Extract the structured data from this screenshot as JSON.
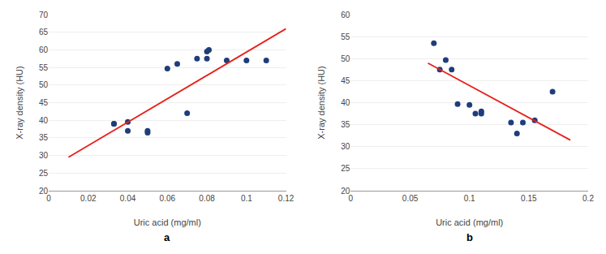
{
  "chart_data": [
    {
      "type": "scatter",
      "xlabel": "Uric acid (mg/ml)",
      "ylabel": "X-ray density (HU)",
      "annotations": [
        {
          "text": "a"
        }
      ],
      "series": [
        {
          "type": "scatter",
          "marker": "circle",
          "color": "#1f3d7a",
          "x": [
            0.033,
            0.033,
            0.04,
            0.04,
            0.05,
            0.05,
            0.06,
            0.065,
            0.07,
            0.075,
            0.08,
            0.08,
            0.081,
            0.09,
            0.1,
            0.11
          ],
          "values": [
            39,
            39,
            39.5,
            37,
            36.5,
            37,
            54.7,
            56,
            42,
            57.5,
            57.5,
            59.5,
            60,
            57,
            57,
            57
          ]
        },
        {
          "type": "line",
          "line_style": "solid",
          "color": "#e8201a",
          "x": [
            0.01,
            0.12
          ],
          "values": [
            29.5,
            66
          ]
        }
      ],
      "xlim": [
        0,
        0.12
      ],
      "ylim": [
        20,
        70
      ],
      "xticks": [
        0,
        0.02,
        0.04,
        0.06,
        0.08,
        0.1,
        0.12
      ],
      "yticks": [
        20,
        25,
        30,
        35,
        40,
        45,
        50,
        55,
        60,
        65,
        70
      ],
      "grid": "y"
    },
    {
      "type": "scatter",
      "xlabel": "Uric acid (mg/ml)",
      "ylabel": "X-ray density (HU)",
      "annotations": [
        {
          "text": "b"
        }
      ],
      "series": [
        {
          "type": "scatter",
          "marker": "circle",
          "color": "#1f3d7a",
          "x": [
            0.07,
            0.075,
            0.08,
            0.085,
            0.09,
            0.1,
            0.105,
            0.11,
            0.11,
            0.135,
            0.14,
            0.145,
            0.155,
            0.17
          ],
          "values": [
            53.5,
            47.5,
            49.7,
            47.5,
            39.7,
            39.5,
            37.5,
            37.5,
            38,
            35.5,
            33,
            35.5,
            36,
            42.5
          ]
        },
        {
          "type": "line",
          "line_style": "solid",
          "color": "#e8201a",
          "x": [
            0.065,
            0.185
          ],
          "values": [
            49,
            31.5
          ]
        }
      ],
      "xlim": [
        0,
        0.2
      ],
      "ylim": [
        20,
        60
      ],
      "xticks": [
        0,
        0.05,
        0.1,
        0.15,
        0.2
      ],
      "yticks": [
        20,
        25,
        30,
        35,
        40,
        45,
        50,
        55,
        60
      ],
      "grid": "y"
    }
  ]
}
